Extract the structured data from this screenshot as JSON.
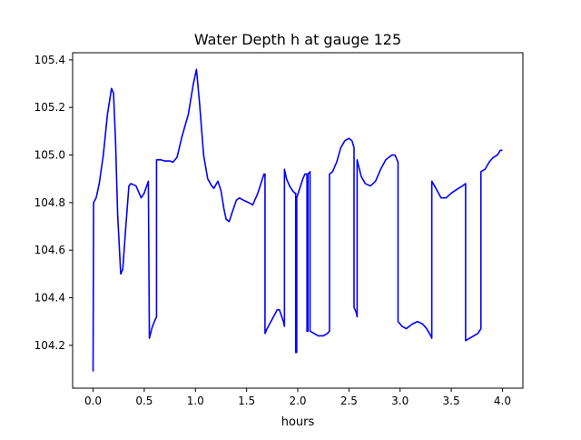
{
  "chart_data": {
    "type": "line",
    "title": "Water Depth h at gauge 125",
    "xlabel": "hours",
    "ylabel": "",
    "xlim": [
      -0.2,
      4.2
    ],
    "ylim": [
      104.02,
      105.43
    ],
    "xticks": [
      0.0,
      0.5,
      1.0,
      1.5,
      2.0,
      2.5,
      3.0,
      3.5,
      4.0
    ],
    "xtick_labels": [
      "0.0",
      "0.5",
      "1.0",
      "1.5",
      "2.0",
      "2.5",
      "3.0",
      "3.5",
      "4.0"
    ],
    "yticks": [
      104.2,
      104.4,
      104.6,
      104.8,
      105.0,
      105.2,
      105.4
    ],
    "ytick_labels": [
      "104.2",
      "104.4",
      "104.6",
      "104.8",
      "105.0",
      "105.2",
      "105.4"
    ],
    "grid": false,
    "color": "#0000ff",
    "series": [
      {
        "points": [
          [
            0.0,
            104.09
          ],
          [
            0.0,
            104.13
          ],
          [
            0.005,
            104.8
          ],
          [
            0.03,
            104.82
          ],
          [
            0.06,
            104.88
          ],
          [
            0.1,
            105.0
          ],
          [
            0.14,
            105.17
          ],
          [
            0.18,
            105.28
          ],
          [
            0.2,
            105.26
          ],
          [
            0.22,
            105.05
          ],
          [
            0.24,
            104.75
          ],
          [
            0.27,
            104.5
          ],
          [
            0.29,
            104.52
          ],
          [
            0.32,
            104.7
          ],
          [
            0.35,
            104.87
          ],
          [
            0.37,
            104.88
          ],
          [
            0.42,
            104.87
          ],
          [
            0.47,
            104.82
          ],
          [
            0.5,
            104.84
          ],
          [
            0.54,
            104.89
          ],
          [
            0.55,
            104.23
          ],
          [
            0.58,
            104.28
          ],
          [
            0.61,
            104.31
          ],
          [
            0.62,
            104.32
          ],
          [
            0.62,
            104.98
          ],
          [
            0.66,
            104.98
          ],
          [
            0.7,
            104.975
          ],
          [
            0.75,
            104.975
          ],
          [
            0.78,
            104.97
          ],
          [
            0.82,
            104.99
          ],
          [
            0.87,
            105.08
          ],
          [
            0.93,
            105.17
          ],
          [
            0.98,
            105.3
          ],
          [
            1.01,
            105.36
          ],
          [
            1.04,
            105.22
          ],
          [
            1.08,
            105.0
          ],
          [
            1.12,
            104.9
          ],
          [
            1.16,
            104.87
          ],
          [
            1.18,
            104.86
          ],
          [
            1.22,
            104.89
          ],
          [
            1.25,
            104.85
          ],
          [
            1.28,
            104.77
          ],
          [
            1.3,
            104.73
          ],
          [
            1.33,
            104.72
          ],
          [
            1.36,
            104.76
          ],
          [
            1.4,
            104.81
          ],
          [
            1.43,
            104.82
          ],
          [
            1.47,
            104.81
          ],
          [
            1.52,
            104.8
          ],
          [
            1.56,
            104.79
          ],
          [
            1.61,
            104.84
          ],
          [
            1.67,
            104.92
          ],
          [
            1.68,
            104.92
          ],
          [
            1.68,
            104.25
          ],
          [
            1.7,
            104.27
          ],
          [
            1.75,
            104.31
          ],
          [
            1.8,
            104.35
          ],
          [
            1.82,
            104.35
          ],
          [
            1.86,
            104.3
          ],
          [
            1.87,
            104.28
          ],
          [
            1.87,
            104.94
          ],
          [
            1.89,
            104.9
          ],
          [
            1.92,
            104.87
          ],
          [
            1.95,
            104.85
          ],
          [
            1.97,
            104.84
          ],
          [
            1.98,
            104.84
          ],
          [
            1.98,
            104.17
          ],
          [
            1.99,
            104.17
          ],
          [
            1.99,
            104.82
          ],
          [
            2.02,
            104.86
          ],
          [
            2.05,
            104.9
          ],
          [
            2.07,
            104.92
          ],
          [
            2.09,
            104.92
          ],
          [
            2.09,
            104.26
          ],
          [
            2.1,
            104.26
          ],
          [
            2.1,
            104.92
          ],
          [
            2.12,
            104.93
          ],
          [
            2.12,
            104.26
          ],
          [
            2.16,
            104.25
          ],
          [
            2.2,
            104.24
          ],
          [
            2.25,
            104.24
          ],
          [
            2.29,
            104.25
          ],
          [
            2.31,
            104.26
          ],
          [
            2.31,
            104.92
          ],
          [
            2.34,
            104.93
          ],
          [
            2.38,
            104.97
          ],
          [
            2.42,
            105.03
          ],
          [
            2.46,
            105.06
          ],
          [
            2.5,
            105.07
          ],
          [
            2.53,
            105.06
          ],
          [
            2.55,
            105.03
          ],
          [
            2.55,
            104.36
          ],
          [
            2.57,
            104.34
          ],
          [
            2.58,
            104.32
          ],
          [
            2.58,
            104.98
          ],
          [
            2.62,
            104.91
          ],
          [
            2.66,
            104.88
          ],
          [
            2.71,
            104.87
          ],
          [
            2.76,
            104.89
          ],
          [
            2.81,
            104.94
          ],
          [
            2.86,
            104.98
          ],
          [
            2.92,
            105.0
          ],
          [
            2.95,
            105.0
          ],
          [
            2.98,
            104.97
          ],
          [
            2.98,
            104.3
          ],
          [
            3.02,
            104.28
          ],
          [
            3.06,
            104.27
          ],
          [
            3.12,
            104.29
          ],
          [
            3.17,
            104.3
          ],
          [
            3.22,
            104.29
          ],
          [
            3.26,
            104.27
          ],
          [
            3.3,
            104.24
          ],
          [
            3.31,
            104.23
          ],
          [
            3.31,
            104.89
          ],
          [
            3.35,
            104.86
          ],
          [
            3.4,
            104.82
          ],
          [
            3.45,
            104.82
          ],
          [
            3.5,
            104.84
          ],
          [
            3.57,
            104.86
          ],
          [
            3.61,
            104.87
          ],
          [
            3.64,
            104.88
          ],
          [
            3.64,
            104.22
          ],
          [
            3.68,
            104.23
          ],
          [
            3.72,
            104.24
          ],
          [
            3.76,
            104.25
          ],
          [
            3.79,
            104.27
          ],
          [
            3.79,
            104.93
          ],
          [
            3.83,
            104.94
          ],
          [
            3.87,
            104.97
          ],
          [
            3.91,
            104.99
          ],
          [
            3.95,
            105.0
          ],
          [
            3.98,
            105.02
          ],
          [
            4.0,
            105.02
          ]
        ]
      }
    ]
  }
}
